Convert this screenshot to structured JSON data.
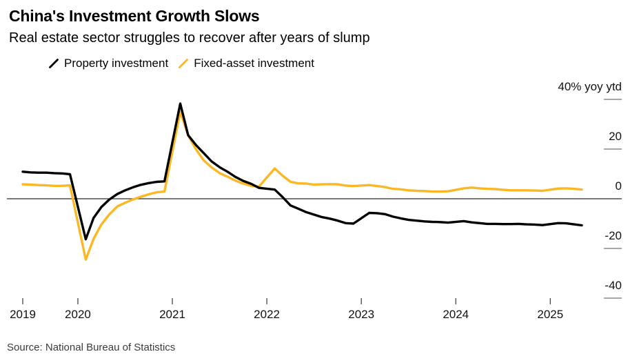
{
  "header": {
    "title": "China's Investment Growth Slows",
    "subtitle": "Real estate sector struggles to recover after years of slump"
  },
  "legend": {
    "items": [
      {
        "label": "Property investment",
        "color": "#000000"
      },
      {
        "label": "Fixed-asset investment",
        "color": "#FBB724"
      }
    ]
  },
  "footer": {
    "source": "Source: National Bureau of Statistics"
  },
  "colors": {
    "property_line": "#000000",
    "fixed_asset_line": "#FBB724",
    "zero_line": "#2b2b2b",
    "y_tick": "#8a8a8a",
    "x_tick": "#444444",
    "axis_text": "#111111"
  },
  "chart_data": {
    "type": "line",
    "title": "China's Investment Growth Slows",
    "subtitle": "Real estate sector struggles to recover after years of slump",
    "unit_label": "40% yoy ytd",
    "legend_position": "top",
    "grid": false,
    "x_range": {
      "start": "2019-06",
      "end": "2025-05"
    },
    "x_tick_labels": [
      "2019",
      "2020",
      "2021",
      "2022",
      "2023",
      "2024",
      "2025"
    ],
    "y_ticks": [
      40,
      20,
      0,
      -20,
      -40
    ],
    "y_tick_labels": [
      "40% yoy ytd",
      "20",
      "0",
      "-20",
      "-40"
    ],
    "ylim": [
      -45,
      45
    ],
    "series": [
      {
        "name": "Property investment",
        "color": "#000000",
        "points": [
          [
            "2019-06",
            10.9
          ],
          [
            "2019-07",
            10.6
          ],
          [
            "2019-08",
            10.5
          ],
          [
            "2019-09",
            10.5
          ],
          [
            "2019-10",
            10.3
          ],
          [
            "2019-11",
            10.2
          ],
          [
            "2019-12",
            9.9
          ],
          [
            "2020-02",
            -16.3
          ],
          [
            "2020-03",
            -7.7
          ],
          [
            "2020-04",
            -3.3
          ],
          [
            "2020-05",
            -0.3
          ],
          [
            "2020-06",
            1.9
          ],
          [
            "2020-07",
            3.4
          ],
          [
            "2020-08",
            4.6
          ],
          [
            "2020-09",
            5.6
          ],
          [
            "2020-10",
            6.3
          ],
          [
            "2020-11",
            6.8
          ],
          [
            "2020-12",
            7.0
          ],
          [
            "2021-02",
            38.3
          ],
          [
            "2021-03",
            25.6
          ],
          [
            "2021-04",
            21.6
          ],
          [
            "2021-05",
            18.3
          ],
          [
            "2021-06",
            15.0
          ],
          [
            "2021-07",
            12.7
          ],
          [
            "2021-08",
            10.9
          ],
          [
            "2021-09",
            8.8
          ],
          [
            "2021-10",
            7.2
          ],
          [
            "2021-11",
            6.0
          ],
          [
            "2021-12",
            4.4
          ],
          [
            "2022-02",
            3.7
          ],
          [
            "2022-03",
            0.7
          ],
          [
            "2022-04",
            -2.7
          ],
          [
            "2022-05",
            -4.0
          ],
          [
            "2022-06",
            -5.4
          ],
          [
            "2022-07",
            -6.4
          ],
          [
            "2022-08",
            -7.4
          ],
          [
            "2022-09",
            -8.0
          ],
          [
            "2022-10",
            -8.8
          ],
          [
            "2022-11",
            -9.8
          ],
          [
            "2022-12",
            -10.0
          ],
          [
            "2023-02",
            -5.7
          ],
          [
            "2023-03",
            -5.8
          ],
          [
            "2023-04",
            -6.2
          ],
          [
            "2023-05",
            -7.2
          ],
          [
            "2023-06",
            -7.9
          ],
          [
            "2023-07",
            -8.5
          ],
          [
            "2023-08",
            -8.8
          ],
          [
            "2023-09",
            -9.1
          ],
          [
            "2023-10",
            -9.3
          ],
          [
            "2023-11",
            -9.4
          ],
          [
            "2023-12",
            -9.6
          ],
          [
            "2024-02",
            -9.0
          ],
          [
            "2024-03",
            -9.5
          ],
          [
            "2024-04",
            -9.8
          ],
          [
            "2024-05",
            -10.1
          ],
          [
            "2024-06",
            -10.1
          ],
          [
            "2024-07",
            -10.2
          ],
          [
            "2024-08",
            -10.2
          ],
          [
            "2024-09",
            -10.1
          ],
          [
            "2024-10",
            -10.3
          ],
          [
            "2024-11",
            -10.4
          ],
          [
            "2024-12",
            -10.6
          ],
          [
            "2025-02",
            -9.8
          ],
          [
            "2025-03",
            -9.9
          ],
          [
            "2025-04",
            -10.3
          ],
          [
            "2025-05",
            -10.7
          ]
        ]
      },
      {
        "name": "Fixed-asset investment",
        "color": "#FBB724",
        "points": [
          [
            "2019-06",
            5.8
          ],
          [
            "2019-07",
            5.7
          ],
          [
            "2019-08",
            5.5
          ],
          [
            "2019-09",
            5.4
          ],
          [
            "2019-10",
            5.2
          ],
          [
            "2019-11",
            5.2
          ],
          [
            "2019-12",
            5.4
          ],
          [
            "2020-02",
            -24.5
          ],
          [
            "2020-03",
            -16.1
          ],
          [
            "2020-04",
            -10.3
          ],
          [
            "2020-05",
            -6.3
          ],
          [
            "2020-06",
            -3.1
          ],
          [
            "2020-07",
            -1.6
          ],
          [
            "2020-08",
            -0.3
          ],
          [
            "2020-09",
            0.8
          ],
          [
            "2020-10",
            1.8
          ],
          [
            "2020-11",
            2.6
          ],
          [
            "2020-12",
            2.9
          ],
          [
            "2021-02",
            35.0
          ],
          [
            "2021-03",
            25.6
          ],
          [
            "2021-04",
            19.9
          ],
          [
            "2021-05",
            15.4
          ],
          [
            "2021-06",
            12.6
          ],
          [
            "2021-07",
            10.3
          ],
          [
            "2021-08",
            8.9
          ],
          [
            "2021-09",
            7.3
          ],
          [
            "2021-10",
            6.1
          ],
          [
            "2021-11",
            5.2
          ],
          [
            "2021-12",
            4.9
          ],
          [
            "2022-02",
            12.2
          ],
          [
            "2022-03",
            9.3
          ],
          [
            "2022-04",
            6.8
          ],
          [
            "2022-05",
            6.2
          ],
          [
            "2022-06",
            6.1
          ],
          [
            "2022-07",
            5.7
          ],
          [
            "2022-08",
            5.8
          ],
          [
            "2022-09",
            5.9
          ],
          [
            "2022-10",
            5.8
          ],
          [
            "2022-11",
            5.3
          ],
          [
            "2022-12",
            5.1
          ],
          [
            "2023-02",
            5.5
          ],
          [
            "2023-03",
            5.1
          ],
          [
            "2023-04",
            4.7
          ],
          [
            "2023-05",
            4.0
          ],
          [
            "2023-06",
            3.8
          ],
          [
            "2023-07",
            3.4
          ],
          [
            "2023-08",
            3.2
          ],
          [
            "2023-09",
            3.1
          ],
          [
            "2023-10",
            2.9
          ],
          [
            "2023-11",
            2.9
          ],
          [
            "2023-12",
            3.0
          ],
          [
            "2024-02",
            4.2
          ],
          [
            "2024-03",
            4.5
          ],
          [
            "2024-04",
            4.2
          ],
          [
            "2024-05",
            4.0
          ],
          [
            "2024-06",
            3.9
          ],
          [
            "2024-07",
            3.6
          ],
          [
            "2024-08",
            3.4
          ],
          [
            "2024-09",
            3.4
          ],
          [
            "2024-10",
            3.4
          ],
          [
            "2024-11",
            3.3
          ],
          [
            "2024-12",
            3.2
          ],
          [
            "2025-02",
            4.1
          ],
          [
            "2025-03",
            4.2
          ],
          [
            "2025-04",
            4.0
          ],
          [
            "2025-05",
            3.7
          ]
        ]
      }
    ]
  }
}
